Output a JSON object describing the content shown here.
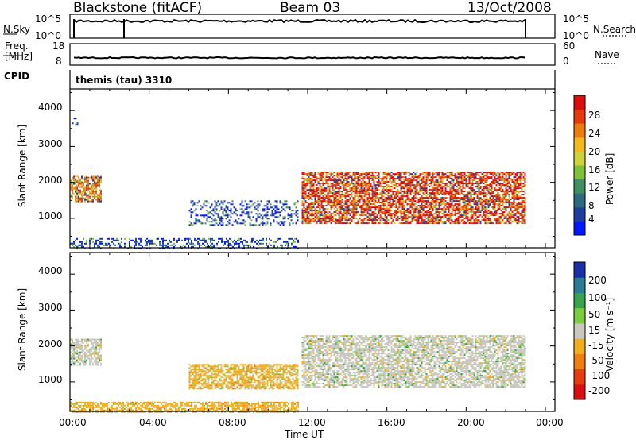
{
  "header": {
    "station": "Blackstone (fitACF)",
    "beam": "Beam 03",
    "date": "13/Oct/2008"
  },
  "nsky_panel": {
    "left_label": "N.Sky",
    "right_label": "N.Search",
    "left_ticks": [
      "10^5",
      "10^0"
    ],
    "right_ticks": [
      "10^5",
      "10^0"
    ]
  },
  "freq_panel": {
    "left_label_line1": "Freq.",
    "left_label_line2": "[MHz]",
    "left_ticks": [
      "18",
      "8"
    ],
    "right_label": "Nave",
    "right_ticks": [
      "60",
      "0"
    ]
  },
  "cpid_panel": {
    "label": "CPID",
    "text": "themis (tau) 3310"
  },
  "power_colorbar": {
    "title": "Power [dB]",
    "ticks": [
      "28",
      "24",
      "20",
      "16",
      "12",
      "8",
      "4"
    ],
    "colors": [
      "#0018ff",
      "#1f3fa0",
      "#2e6a7d",
      "#3f8f60",
      "#7fc23a",
      "#cfd23a",
      "#f2b81c",
      "#ee7c10",
      "#e63a0c",
      "#dd0d0d"
    ]
  },
  "velocity_colorbar": {
    "title": "Velocity [m s⁻¹]",
    "ticks": [
      "200",
      "100",
      "50",
      "15",
      "-15",
      "-50",
      "-100",
      "-200"
    ],
    "colors": [
      "#1a2fa8",
      "#2a7d95",
      "#38a34f",
      "#7ccc3f",
      "#c8c8c0",
      "#f2ae1c",
      "#ee7f10",
      "#e63d0e",
      "#dd0e0e"
    ]
  },
  "chart_data": [
    {
      "type": "heatmap",
      "name": "power",
      "ylabel": "Slant Range [km]",
      "y_ticks": [
        "4000",
        "3000",
        "2000",
        "1000"
      ],
      "ylim": [
        180,
        4600
      ],
      "xlim": [
        0,
        24
      ],
      "regions": [
        {
          "t0": 0.0,
          "t1": 1.6,
          "r0": 1450,
          "r1": 2200,
          "level": "medium"
        },
        {
          "t0": 0.1,
          "t1": 0.4,
          "r0": 3600,
          "r1": 3800,
          "level": "weak"
        },
        {
          "t0": 6.0,
          "t1": 11.5,
          "r0": 800,
          "r1": 1500,
          "level": "weak"
        },
        {
          "t0": 11.7,
          "t1": 23.0,
          "r0": 850,
          "r1": 2300,
          "level": "strong"
        },
        {
          "t0": 0.0,
          "t1": 11.5,
          "r0": 180,
          "r1": 450,
          "level": "weak"
        }
      ]
    },
    {
      "type": "heatmap",
      "name": "velocity",
      "ylabel": "Slant Range [km]",
      "y_ticks": [
        "4000",
        "3000",
        "2000",
        "1000"
      ],
      "ylim": [
        180,
        4600
      ],
      "xlim": [
        0,
        24
      ],
      "regions": [
        {
          "t0": 0.0,
          "t1": 1.6,
          "r0": 1450,
          "r1": 2200,
          "level": "low"
        },
        {
          "t0": 6.0,
          "t1": 11.5,
          "r0": 800,
          "r1": 1500,
          "level": "negative"
        },
        {
          "t0": 11.7,
          "t1": 23.0,
          "r0": 850,
          "r1": 2300,
          "level": "low"
        },
        {
          "t0": 0.0,
          "t1": 11.5,
          "r0": 180,
          "r1": 450,
          "level": "negative"
        }
      ]
    }
  ],
  "x_axis": {
    "label": "Time UT",
    "ticks": [
      "00:00",
      "04:00",
      "08:00",
      "12:00",
      "16:00",
      "20:00",
      "00:00"
    ]
  }
}
